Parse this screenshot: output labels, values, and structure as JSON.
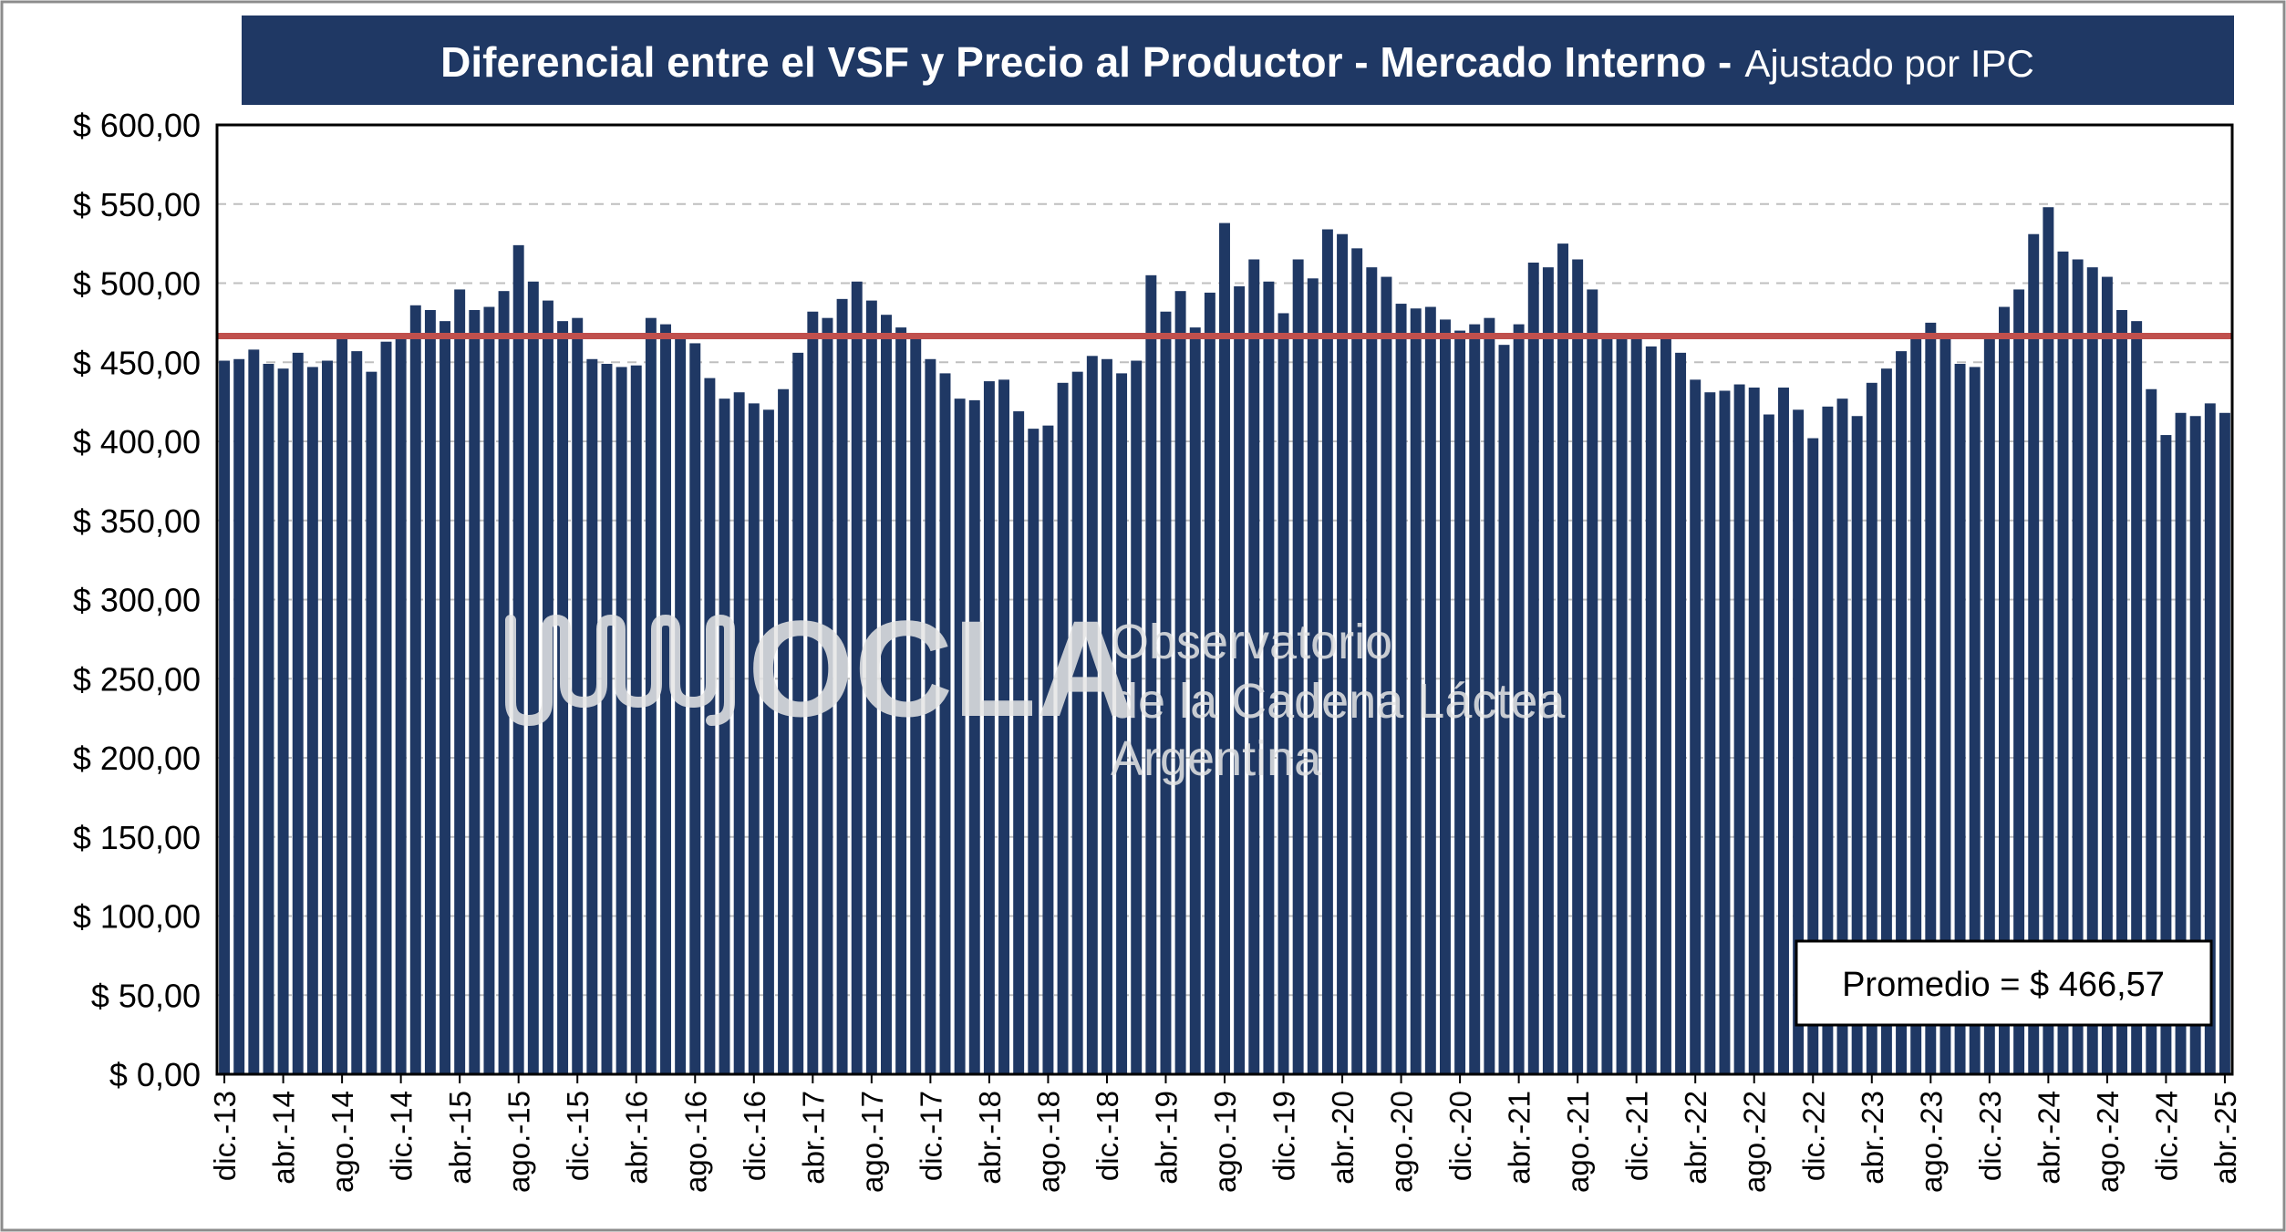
{
  "chart_data": {
    "type": "bar",
    "title": "Diferencial entre el VSF y Precio al Productor - Mercado Interno -",
    "subtitle": "Ajustado por IPC",
    "xlabel": "",
    "ylabel": "",
    "ylim": [
      0,
      600
    ],
    "ytick_values": [
      0,
      50,
      100,
      150,
      200,
      250,
      300,
      350,
      400,
      450,
      500,
      550,
      600
    ],
    "ytick_labels": [
      "$ 0,00",
      "$ 50,00",
      "$ 100,00",
      "$ 150,00",
      "$ 200,00",
      "$ 250,00",
      "$ 300,00",
      "$ 350,00",
      "$ 400,00",
      "$ 450,00",
      "$ 500,00",
      "$ 550,00",
      "$ 600,00"
    ],
    "xtick_labels": [
      "dic.-13",
      "abr.-14",
      "ago.-14",
      "dic.-14",
      "abr.-15",
      "ago.-15",
      "dic.-15",
      "abr.-16",
      "ago.-16",
      "dic.-16",
      "abr.-17",
      "ago.-17",
      "dic.-17",
      "abr.-18",
      "ago.-18",
      "dic.-18",
      "abr.-19",
      "ago.-19",
      "dic.-19",
      "abr.-20",
      "ago.-20",
      "dic.-20",
      "abr.-21",
      "ago.-21",
      "dic.-21",
      "abr.-22",
      "ago.-22",
      "dic.-22",
      "abr.-23",
      "ago.-23",
      "dic.-23",
      "abr.-24",
      "ago.-24",
      "dic.-24",
      "abr.-25"
    ],
    "tick_every": 4,
    "values": [
      451,
      452,
      458,
      449,
      446,
      456,
      447,
      451,
      465,
      457,
      444,
      463,
      465,
      486,
      483,
      476,
      496,
      483,
      485,
      495,
      524,
      501,
      489,
      476,
      478,
      452,
      449,
      447,
      448,
      478,
      474,
      468,
      462,
      440,
      427,
      431,
      424,
      420,
      433,
      456,
      482,
      478,
      490,
      501,
      489,
      480,
      472,
      466,
      452,
      443,
      427,
      426,
      438,
      439,
      419,
      408,
      410,
      437,
      444,
      454,
      452,
      443,
      451,
      505,
      482,
      495,
      472,
      494,
      538,
      498,
      515,
      501,
      481,
      515,
      503,
      534,
      531,
      522,
      510,
      504,
      487,
      484,
      485,
      477,
      470,
      474,
      478,
      461,
      474,
      513,
      510,
      525,
      515,
      496,
      467,
      466,
      465,
      460,
      467,
      456,
      439,
      431,
      432,
      436,
      434,
      417,
      434,
      420,
      402,
      422,
      427,
      416,
      437,
      446,
      457,
      467,
      475,
      466,
      449,
      447,
      465,
      485,
      496,
      531,
      548,
      520,
      515,
      510,
      504,
      483,
      476,
      433,
      404,
      418,
      416,
      424,
      418
    ],
    "average": 466.57,
    "average_label": "Promedio = $ 466,57",
    "grid": "horizontal-dashed",
    "bar_color": "#1f3864",
    "average_line_color": "#c0504d",
    "title_bg_color": "#1f3864",
    "watermark": {
      "brand": "OCLA",
      "line1": "Observatorio",
      "line2": "de la Cadena Láctea",
      "line3": "Argentina"
    }
  }
}
